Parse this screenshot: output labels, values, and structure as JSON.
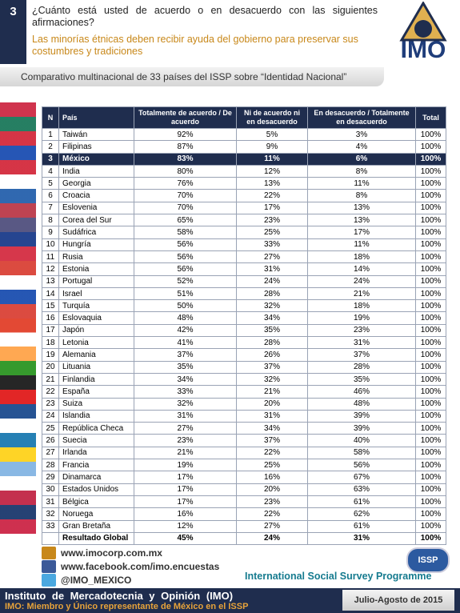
{
  "header": {
    "number": "3",
    "question": "¿Cuánto está usted de acuerdo o en desacuerdo con las siguientes afirmaciones?",
    "statement": "Las minorías étnicas deben recibir ayuda del gobierno para preservar sus costumbres y tradiciones",
    "logo": "IMO"
  },
  "subtitle": "Comparativo multinacional de 33 países del ISSP sobre “Identidad Nacional”",
  "table": {
    "columns": [
      "N",
      "País",
      "Totalmente de acuerdo / De acuerdo",
      "Ni de acuerdo ni en desacuerdo",
      "En desacuerdo / Totalmente en desacuerdo",
      "Total"
    ],
    "highlight_row": 2,
    "rows": [
      [
        "1",
        "Taiwán",
        "92%",
        "5%",
        "3%",
        "100%"
      ],
      [
        "2",
        "Filipinas",
        "87%",
        "9%",
        "4%",
        "100%"
      ],
      [
        "3",
        "México",
        "83%",
        "11%",
        "6%",
        "100%"
      ],
      [
        "4",
        "India",
        "80%",
        "12%",
        "8%",
        "100%"
      ],
      [
        "5",
        "Georgia",
        "76%",
        "13%",
        "11%",
        "100%"
      ],
      [
        "6",
        "Croacia",
        "70%",
        "22%",
        "8%",
        "100%"
      ],
      [
        "7",
        "Eslovenia",
        "70%",
        "17%",
        "13%",
        "100%"
      ],
      [
        "8",
        "Corea del Sur",
        "65%",
        "23%",
        "13%",
        "100%"
      ],
      [
        "9",
        "Sudáfrica",
        "58%",
        "25%",
        "17%",
        "100%"
      ],
      [
        "10",
        "Hungría",
        "56%",
        "33%",
        "11%",
        "100%"
      ],
      [
        "11",
        "Rusia",
        "56%",
        "27%",
        "18%",
        "100%"
      ],
      [
        "12",
        "Estonia",
        "56%",
        "31%",
        "14%",
        "100%"
      ],
      [
        "13",
        "Portugal",
        "52%",
        "24%",
        "24%",
        "100%"
      ],
      [
        "14",
        "Israel",
        "51%",
        "28%",
        "21%",
        "100%"
      ],
      [
        "15",
        "Turquía",
        "50%",
        "32%",
        "18%",
        "100%"
      ],
      [
        "16",
        "Eslovaquia",
        "48%",
        "34%",
        "19%",
        "100%"
      ],
      [
        "17",
        "Japón",
        "42%",
        "35%",
        "23%",
        "100%"
      ],
      [
        "18",
        "Letonia",
        "41%",
        "28%",
        "31%",
        "100%"
      ],
      [
        "19",
        "Alemania",
        "37%",
        "26%",
        "37%",
        "100%"
      ],
      [
        "20",
        "Lituania",
        "35%",
        "37%",
        "28%",
        "100%"
      ],
      [
        "21",
        "Finlandia",
        "34%",
        "32%",
        "35%",
        "100%"
      ],
      [
        "22",
        "España",
        "33%",
        "21%",
        "46%",
        "100%"
      ],
      [
        "23",
        "Suiza",
        "32%",
        "20%",
        "48%",
        "100%"
      ],
      [
        "24",
        "Islandia",
        "31%",
        "31%",
        "39%",
        "100%"
      ],
      [
        "25",
        "República Checa",
        "27%",
        "34%",
        "39%",
        "100%"
      ],
      [
        "26",
        "Suecia",
        "23%",
        "37%",
        "40%",
        "100%"
      ],
      [
        "27",
        "Irlanda",
        "21%",
        "22%",
        "58%",
        "100%"
      ],
      [
        "28",
        "Francia",
        "19%",
        "25%",
        "56%",
        "100%"
      ],
      [
        "29",
        "Dinamarca",
        "17%",
        "16%",
        "67%",
        "100%"
      ],
      [
        "30",
        "Estados Unidos",
        "17%",
        "20%",
        "63%",
        "100%"
      ],
      [
        "31",
        "Bélgica",
        "17%",
        "23%",
        "61%",
        "100%"
      ],
      [
        "32",
        "Noruega",
        "16%",
        "22%",
        "62%",
        "100%"
      ],
      [
        "33",
        "Gran Bretaña",
        "12%",
        "27%",
        "61%",
        "100%"
      ]
    ],
    "summary": {
      "label": "Resultado Global",
      "values": [
        "45%",
        "24%",
        "31%",
        "100%"
      ]
    }
  },
  "footer": {
    "links": [
      "www.imocorp.com.mx",
      "www.facebook.com/imo.encuestas",
      "@IMO_MEXICO"
    ],
    "issp_logo": "ISSP",
    "issp_name": "International Social Survey Programme",
    "institute": "Instituto de Mercadotecnia y Opinión (IMO)",
    "membership": "IMO: Miembro y Único representante de México en el ISSP",
    "date": "Julio-Agosto de 2015"
  }
}
